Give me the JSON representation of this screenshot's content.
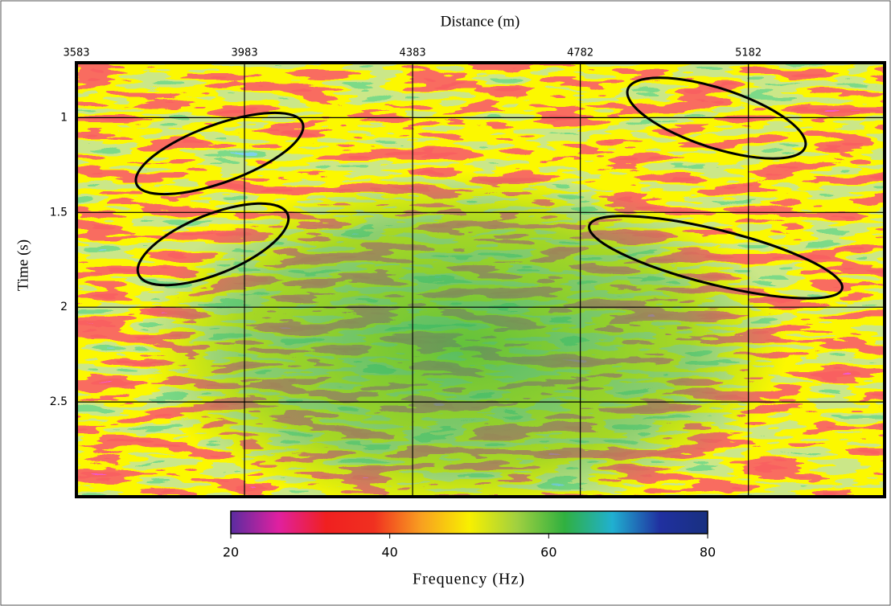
{
  "chart_data": {
    "type": "heatmap",
    "xlabel": "Distance (m)",
    "ylabel": "Time (s)",
    "xlim": [
      3583,
      5506
    ],
    "xticks": [
      3583,
      3983,
      4383,
      4782,
      5182
    ],
    "ylim": [
      0.71,
      3.0
    ],
    "yticks": [
      1,
      1.5,
      2,
      2.5
    ],
    "grid": true,
    "colorbar": {
      "label": "Frequency (Hz)",
      "lim": [
        20,
        80
      ],
      "ticks": [
        20,
        40,
        60,
        80
      ],
      "colors": [
        "#5a2ca0",
        "#e020a0",
        "#f02020",
        "#f03020",
        "#f8a020",
        "#f8f000",
        "#a0d040",
        "#30b040",
        "#20b0d0",
        "#2030a0",
        "#183080"
      ]
    }
  }
}
